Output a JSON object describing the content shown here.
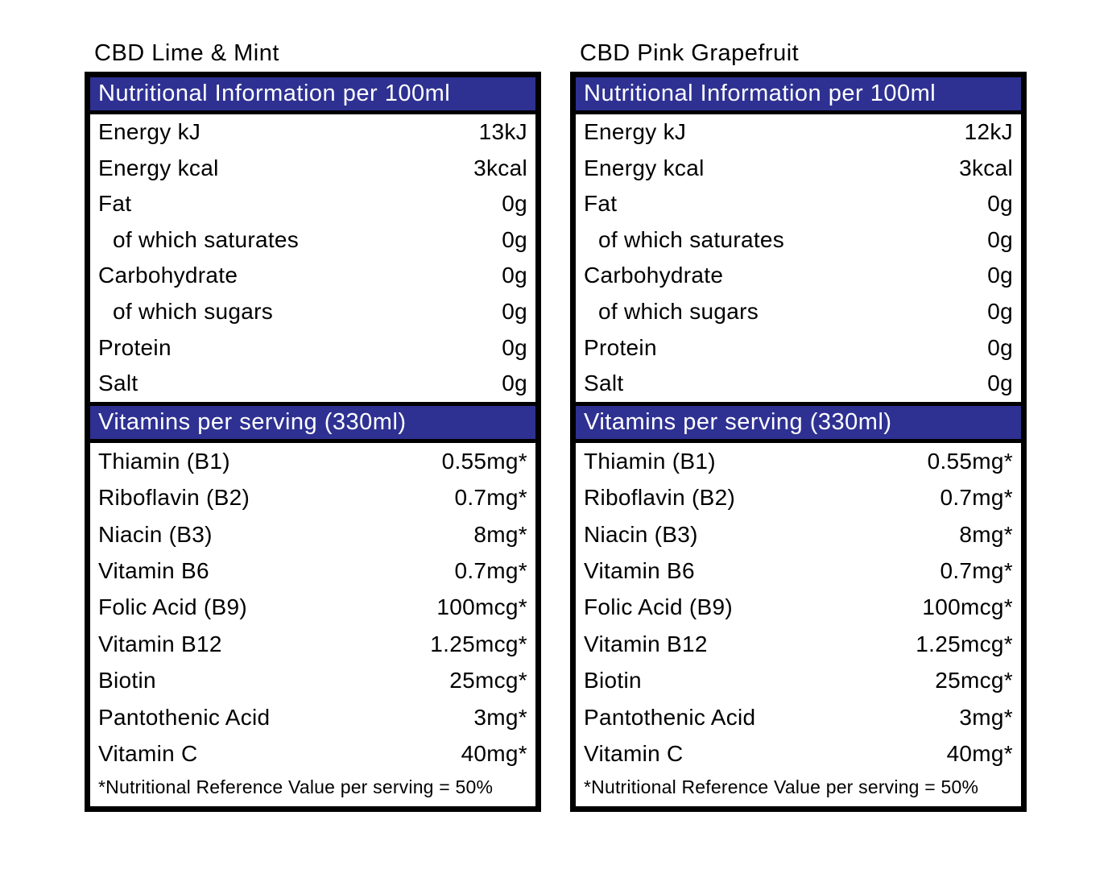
{
  "colors": {
    "band_background": "#2e3192",
    "band_text": "#ffffff",
    "border": "#000000",
    "text": "#000000",
    "page_background": "#ffffff"
  },
  "tables": [
    {
      "title": "CBD Lime & Mint",
      "nutrition_header": "Nutritional Information per 100ml",
      "nutrition_rows": [
        {
          "label": "Energy kJ",
          "value": "13kJ",
          "indent": false
        },
        {
          "label": "Energy kcal",
          "value": "3kcal",
          "indent": false
        },
        {
          "label": "Fat",
          "value": "0g",
          "indent": false
        },
        {
          "label": "of which saturates",
          "value": "0g",
          "indent": true
        },
        {
          "label": "Carbohydrate",
          "value": "0g",
          "indent": false
        },
        {
          "label": "of which sugars",
          "value": "0g",
          "indent": true
        },
        {
          "label": "Protein",
          "value": "0g",
          "indent": false
        },
        {
          "label": "Salt",
          "value": "0g",
          "indent": false
        }
      ],
      "vitamins_header": "Vitamins per serving (330ml)",
      "vitamin_rows": [
        {
          "label": "Thiamin (B1)",
          "value": "0.55mg*"
        },
        {
          "label": "Riboflavin (B2)",
          "value": "0.7mg*"
        },
        {
          "label": "Niacin (B3)",
          "value": "8mg*"
        },
        {
          "label": "Vitamin B6",
          "value": "0.7mg*"
        },
        {
          "label": "Folic Acid (B9)",
          "value": "100mcg*"
        },
        {
          "label": "Vitamin B12",
          "value": "1.25mcg*"
        },
        {
          "label": "Biotin",
          "value": "25mcg*"
        },
        {
          "label": "Pantothenic Acid",
          "value": "3mg*"
        },
        {
          "label": "Vitamin C",
          "value": "40mg*"
        }
      ],
      "footnote": "*Nutritional Reference Value per serving = 50%"
    },
    {
      "title": "CBD Pink Grapefruit",
      "nutrition_header": "Nutritional Information per 100ml",
      "nutrition_rows": [
        {
          "label": "Energy kJ",
          "value": "12kJ",
          "indent": false
        },
        {
          "label": "Energy kcal",
          "value": "3kcal",
          "indent": false
        },
        {
          "label": "Fat",
          "value": "0g",
          "indent": false
        },
        {
          "label": "of which saturates",
          "value": "0g",
          "indent": true
        },
        {
          "label": "Carbohydrate",
          "value": "0g",
          "indent": false
        },
        {
          "label": "of which sugars",
          "value": "0g",
          "indent": true
        },
        {
          "label": "Protein",
          "value": "0g",
          "indent": false
        },
        {
          "label": "Salt",
          "value": "0g",
          "indent": false
        }
      ],
      "vitamins_header": "Vitamins per serving (330ml)",
      "vitamin_rows": [
        {
          "label": "Thiamin (B1)",
          "value": "0.55mg*"
        },
        {
          "label": "Riboflavin (B2)",
          "value": "0.7mg*"
        },
        {
          "label": "Niacin (B3)",
          "value": "8mg*"
        },
        {
          "label": "Vitamin B6",
          "value": "0.7mg*"
        },
        {
          "label": "Folic Acid (B9)",
          "value": "100mcg*"
        },
        {
          "label": "Vitamin B12",
          "value": "1.25mcg*"
        },
        {
          "label": "Biotin",
          "value": "25mcg*"
        },
        {
          "label": "Pantothenic Acid",
          "value": "3mg*"
        },
        {
          "label": "Vitamin C",
          "value": "40mg*"
        }
      ],
      "footnote": "*Nutritional Reference Value per serving = 50%"
    }
  ]
}
